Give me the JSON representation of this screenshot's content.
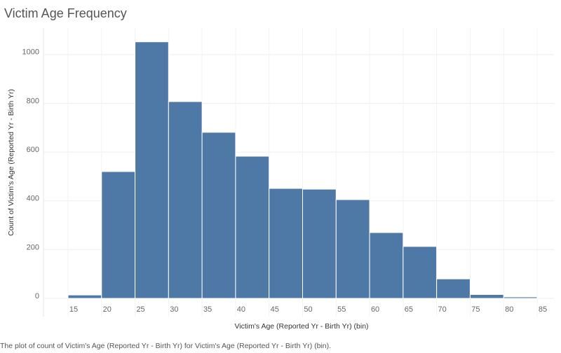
{
  "chart_data": {
    "type": "histogram",
    "title": "Victim Age Frequency",
    "x_label": "Victim's Age (Reported Yr - Birth Yr) (bin)",
    "y_label": "Count of Victim's Age (Reported Yr - Birth Yr)",
    "caption": "The plot of count of Victim's Age (Reported Yr - Birth Yr) for Victim's Age (Reported Yr - Birth Yr) (bin).",
    "bins": [
      15,
      20,
      25,
      30,
      35,
      40,
      45,
      50,
      55,
      60,
      65,
      70,
      75,
      80,
      85
    ],
    "values": [
      14,
      520,
      1052,
      807,
      681,
      583,
      451,
      448,
      405,
      270,
      213,
      80,
      16,
      6
    ],
    "color": "#4e79a7",
    "xlim": [
      15,
      85
    ],
    "xticks": [
      15,
      20,
      25,
      30,
      35,
      40,
      45,
      50,
      55,
      60,
      65,
      70,
      75,
      80,
      85
    ],
    "ylim": [
      -20,
      1100
    ],
    "yticks": [
      0,
      200,
      400,
      600,
      800,
      1000
    ],
    "grid": true
  }
}
